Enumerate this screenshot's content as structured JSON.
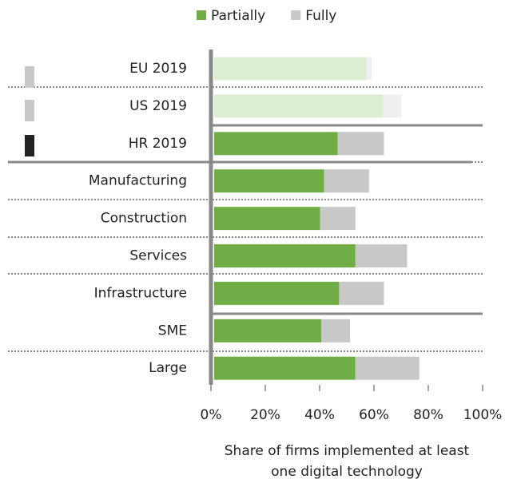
{
  "chart_data": {
    "type": "stacked-barh",
    "categories": [
      "EU 2019",
      "US 2019",
      "HR 2019",
      "Manufacturing",
      "Construction",
      "Services",
      "Infrastructure",
      "SME",
      "Large"
    ],
    "series": [
      {
        "name": "Partially",
        "color": "#70ad47",
        "colors": [
          "#dcedd2",
          "#dcedd2",
          "#70ad47",
          "#70ad47",
          "#70ad47",
          "#70ad47",
          "#70ad47",
          "#70ad47",
          "#70ad47"
        ],
        "values": [
          56,
          62,
          45.5,
          40.5,
          39,
          52,
          46,
          39.5,
          52
        ]
      },
      {
        "name": "Fully",
        "color": "#c8c8c8",
        "colors": [
          "#efefef",
          "#efefef",
          "#c8c8c8",
          "#c8c8c8",
          "#c8c8c8",
          "#c8c8c8",
          "#c8c8c8",
          "#c8c8c8",
          "#c8c8c8"
        ],
        "values": [
          2,
          7,
          17,
          16.5,
          13,
          19,
          16.5,
          10.5,
          23.5
        ]
      }
    ],
    "xlim": [
      0,
      100
    ],
    "xticks": [
      {
        "value": 0,
        "label": "0%"
      },
      {
        "value": 20,
        "label": "20%"
      },
      {
        "value": 40,
        "label": "40%"
      },
      {
        "value": 60,
        "label": "60%"
      },
      {
        "value": 80,
        "label": "80%"
      },
      {
        "value": 100,
        "label": "100%"
      }
    ],
    "xlabel": "Share of firms implemented at least one digital technology",
    "legend": "top"
  }
}
